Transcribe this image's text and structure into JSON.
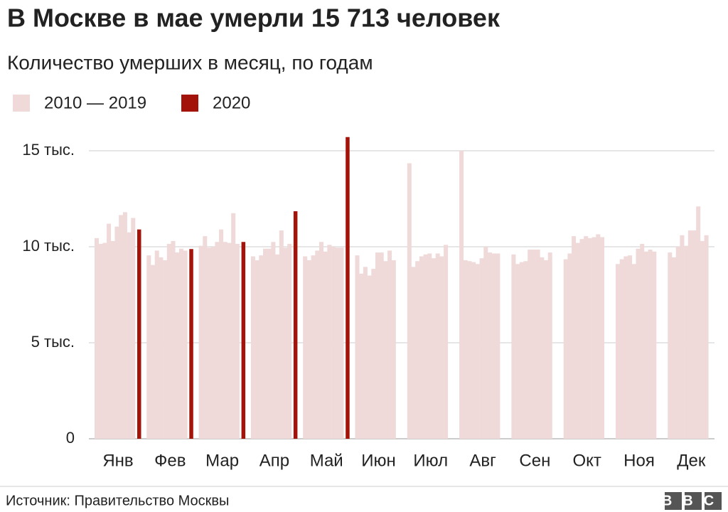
{
  "chart_data": {
    "type": "bar",
    "title": "В Москве в мае умерли 15 713 человек",
    "subtitle": "Количество умерших в месяц, по годам",
    "source": "Источник: Правительство Москвы",
    "logo": "BBC",
    "categories": [
      "Янв",
      "Фев",
      "Мар",
      "Апр",
      "Май",
      "Июн",
      "Июл",
      "Авг",
      "Сен",
      "Окт",
      "Ноя",
      "Дек"
    ],
    "series": [
      {
        "name": "2010 — 2019",
        "color": "#efd9d9",
        "values": [
          [
            10450,
            10150,
            10200,
            11200,
            10300,
            11050,
            11650,
            11800,
            10750,
            11500
          ],
          [
            9550,
            9050,
            9800,
            9450,
            9300,
            10150,
            10300,
            9700,
            9900,
            9800
          ],
          [
            10050,
            10550,
            9950,
            10000,
            10250,
            10900,
            10250,
            10200,
            11750,
            10150
          ],
          [
            9500,
            9300,
            9550,
            9900,
            9900,
            10250,
            9600,
            10850,
            9950,
            10150
          ],
          [
            9500,
            9300,
            9550,
            9800,
            10250,
            9750,
            10100,
            10000,
            9950,
            9950
          ],
          [
            9550,
            8600,
            8950,
            8500,
            8850,
            9700,
            9700,
            9250,
            9800,
            9300
          ],
          [
            14350,
            8950,
            9250,
            9500,
            9600,
            9650,
            9400,
            9650,
            9500,
            10100
          ],
          [
            15000,
            9300,
            9250,
            9200,
            9100,
            9400,
            10000,
            9700,
            9650,
            9650
          ],
          [
            9600,
            9100,
            9200,
            9250,
            9850,
            9850,
            9850,
            9450,
            9300,
            9700
          ],
          [
            9350,
            9650,
            10550,
            10200,
            10400,
            10550,
            10450,
            10500,
            10650,
            10500
          ],
          [
            9100,
            9350,
            9500,
            9550,
            9100,
            9900,
            10150,
            9750,
            9850,
            9750
          ],
          [
            9700,
            9450,
            10000,
            10600,
            10050,
            10850,
            10850,
            12100,
            10300,
            10600
          ]
        ]
      },
      {
        "name": "2020",
        "color": "#a31309",
        "values": [
          10900,
          9880,
          10250,
          11850,
          15713,
          null,
          null,
          null,
          null,
          null,
          null,
          null
        ]
      }
    ],
    "ylim": [
      0,
      16000
    ],
    "yticks": [
      0,
      {
        "value": 5000,
        "label": "5 тыс."
      },
      {
        "value": 10000,
        "label": "10 тыс."
      },
      {
        "value": 15000,
        "label": "15 тыс."
      }
    ],
    "grid": true
  }
}
